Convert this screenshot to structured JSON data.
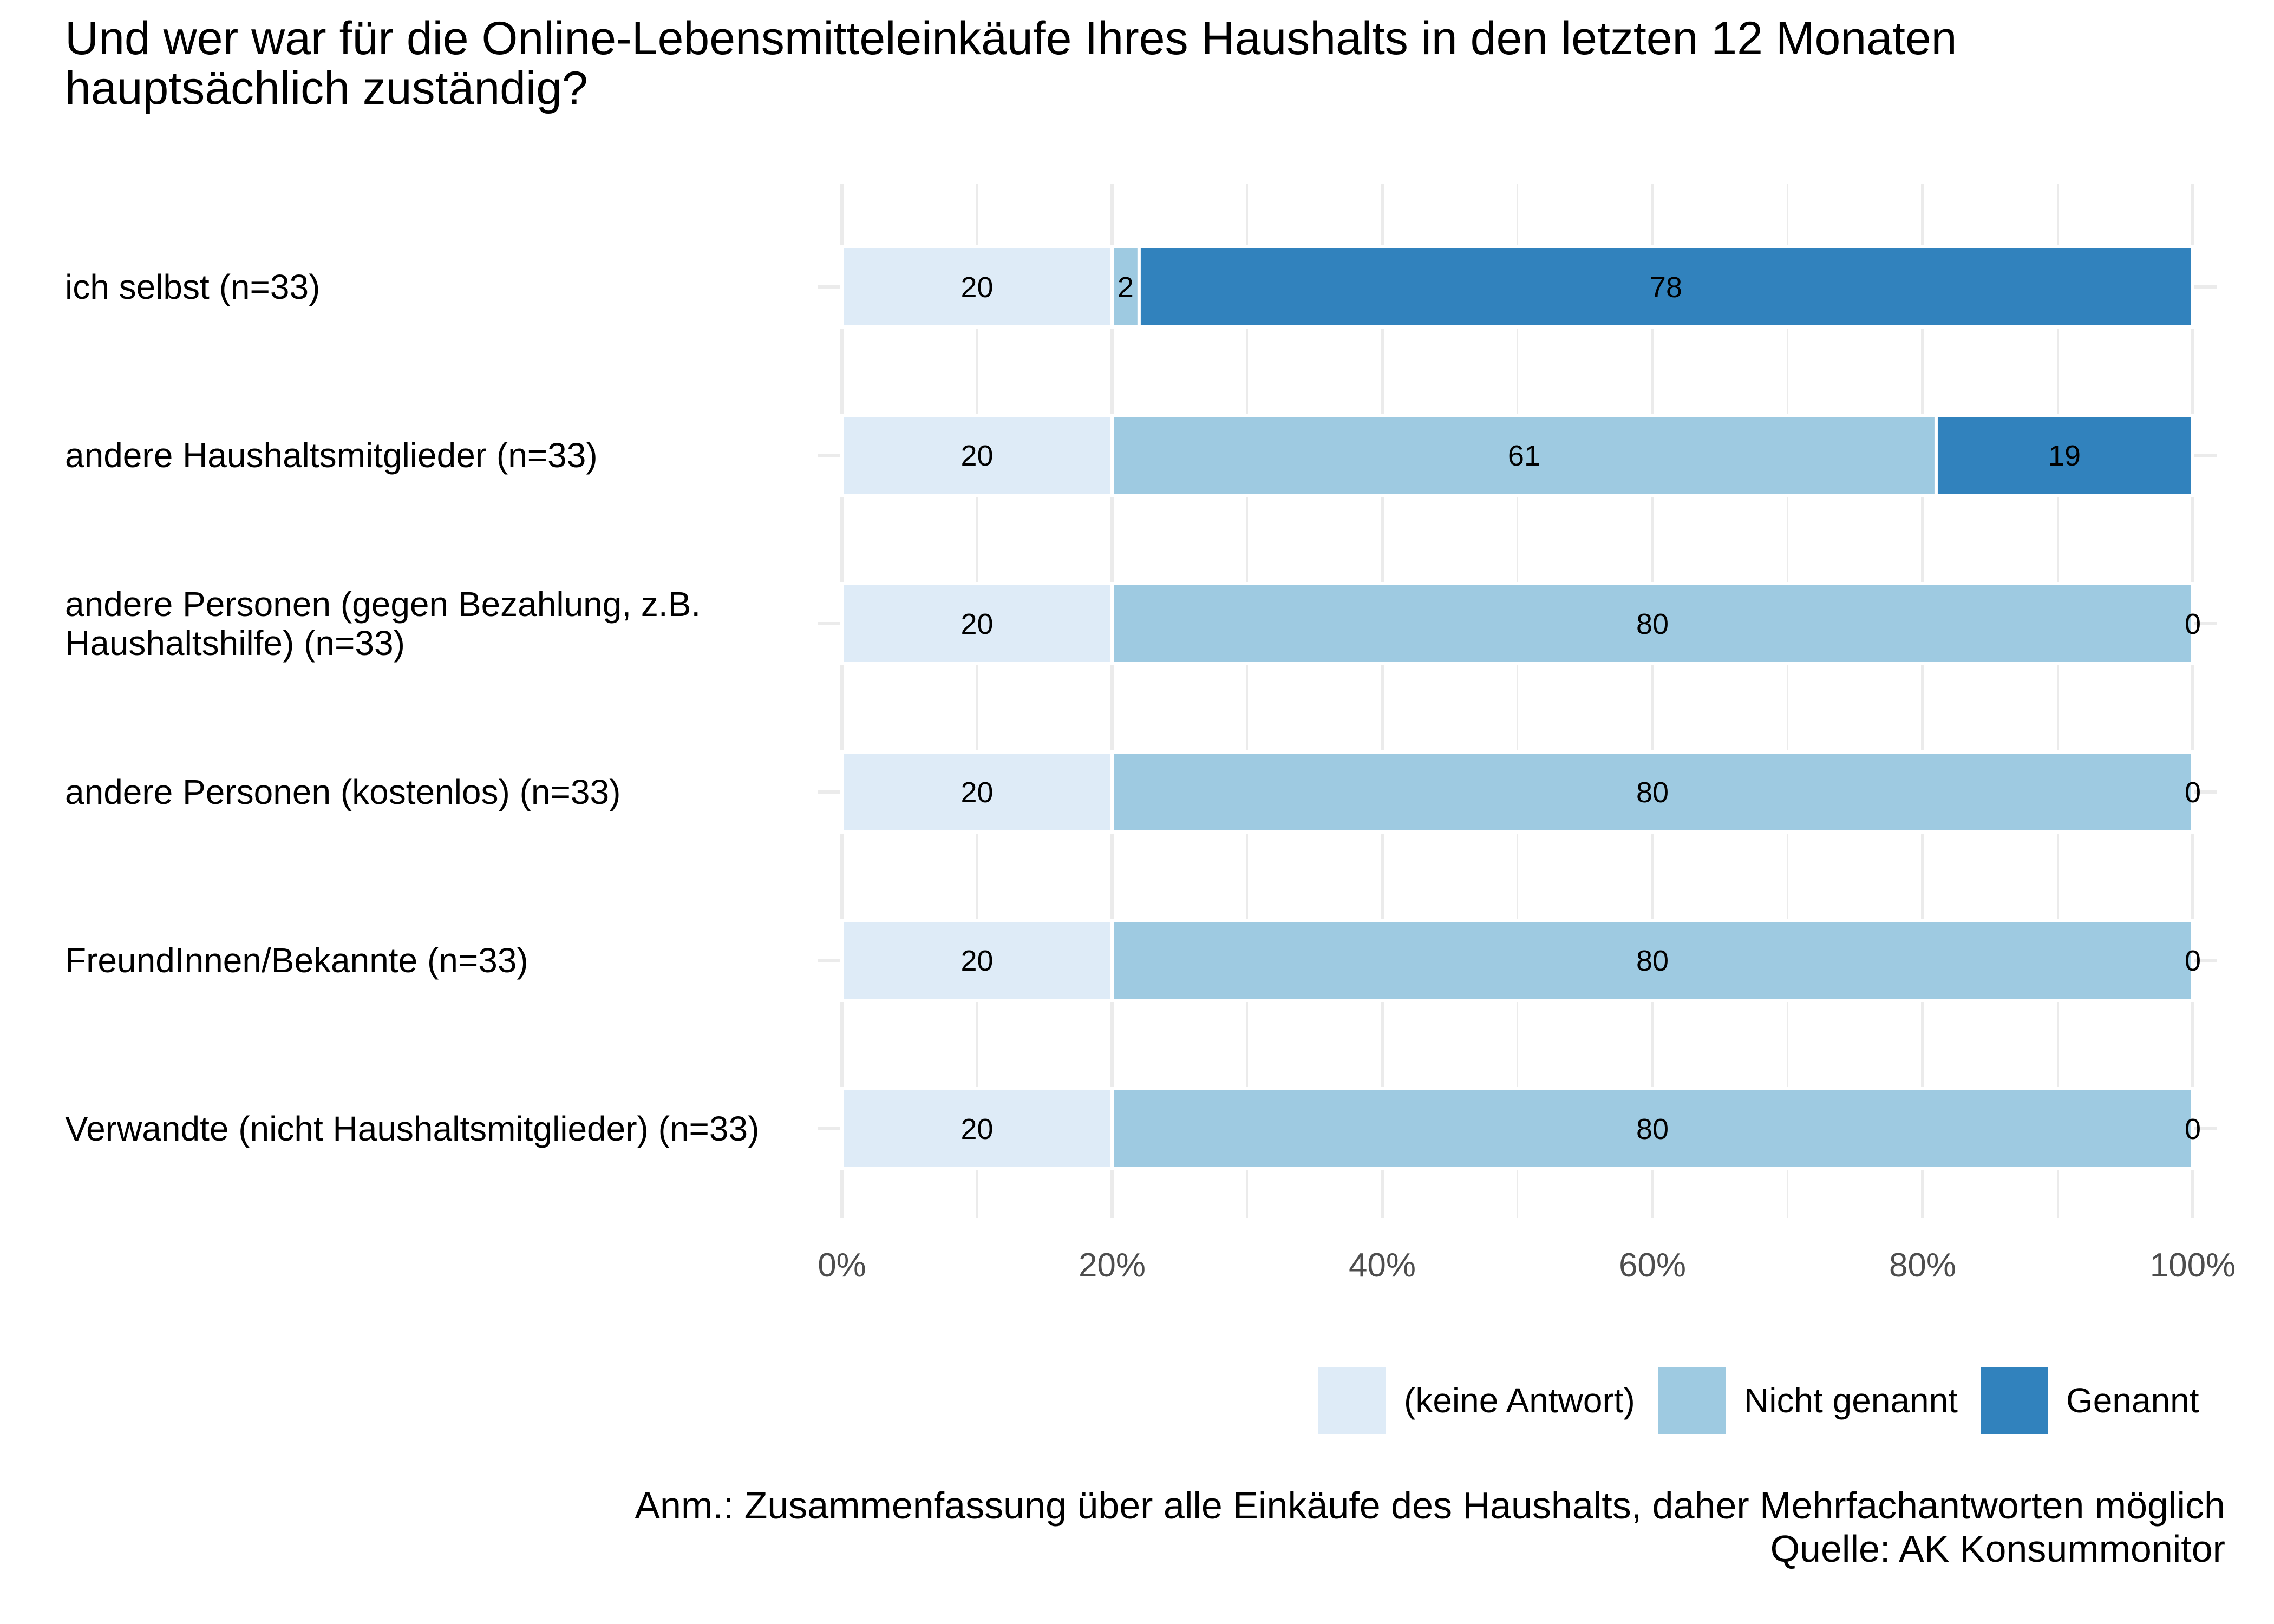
{
  "chart_data": {
    "type": "bar",
    "orientation": "horizontal",
    "stacked": true,
    "percent": true,
    "title_lines": [
      "Und wer war für die Online-Lebensmitteleinkäufe Ihres Haushalts in den letzten 12 Monaten",
      "hauptsächlich zuständig?"
    ],
    "categories": [
      [
        "ich selbst (n=33)"
      ],
      [
        "andere Haushaltsmitglieder (n=33)"
      ],
      [
        "andere Personen (gegen Bezahlung, z.B.",
        "Haushaltshilfe) (n=33)"
      ],
      [
        "andere Personen (kostenlos) (n=33)"
      ],
      [
        "FreundInnen/Bekannte (n=33)"
      ],
      [
        "Verwandte (nicht Haushaltsmitglieder) (n=33)"
      ]
    ],
    "series": [
      {
        "name": "(keine Antwort)",
        "color": "#deebf7",
        "values": [
          20,
          20,
          20,
          20,
          20,
          20
        ],
        "labels": [
          "20",
          "20",
          "20",
          "20",
          "20",
          "20"
        ]
      },
      {
        "name": "Nicht genannt",
        "color": "#9ecae1",
        "values": [
          2,
          61,
          80,
          80,
          80,
          80
        ],
        "labels": [
          "2",
          "61",
          "80",
          "80",
          "80",
          "80"
        ]
      },
      {
        "name": "Genannt",
        "color": "#3182bd",
        "values": [
          78,
          19,
          0,
          0,
          0,
          0
        ],
        "labels": [
          "78",
          "19",
          "0",
          "0",
          "0",
          "0"
        ]
      }
    ],
    "xlim": [
      0,
      100
    ],
    "x_ticks": [
      0,
      20,
      40,
      60,
      80,
      100
    ],
    "x_tick_labels": [
      "0%",
      "20%",
      "40%",
      "60%",
      "80%",
      "100%"
    ],
    "x_minor_ticks": [
      10,
      30,
      50,
      70,
      90
    ],
    "legend_position": "bottom-right",
    "legend": [
      "(keine Antwort)",
      "Nicht genannt",
      "Genannt"
    ],
    "caption_lines": [
      "Anm.: Zusammenfassung über alle Einkäufe des Haushalts, daher Mehrfachantworten möglich",
      "Quelle: AK Konsummonitor"
    ]
  }
}
